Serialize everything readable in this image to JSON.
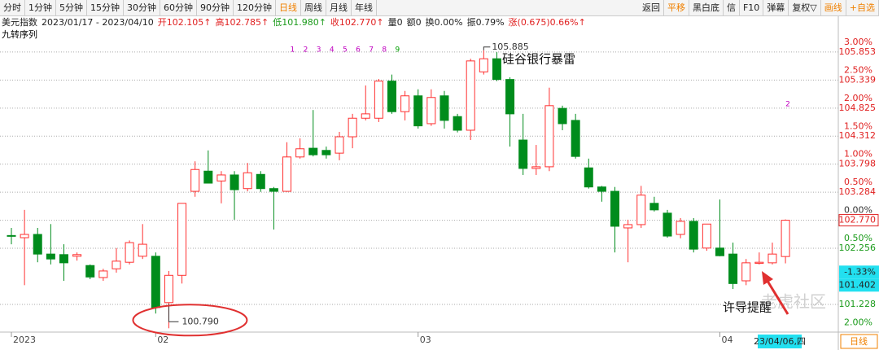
{
  "toolbar": {
    "left": [
      {
        "text": "分时",
        "color": "#222"
      },
      {
        "text": "1分钟",
        "color": "#222"
      },
      {
        "text": "5分钟",
        "color": "#222"
      },
      {
        "text": "15分钟",
        "color": "#222"
      },
      {
        "text": "30分钟",
        "color": "#222"
      },
      {
        "text": "60分钟",
        "color": "#222"
      },
      {
        "text": "90分钟",
        "color": "#222"
      },
      {
        "text": "120分钟",
        "color": "#222"
      },
      {
        "text": "日线",
        "color": "#f08000"
      },
      {
        "text": "周线",
        "color": "#222"
      },
      {
        "text": "月线",
        "color": "#222"
      },
      {
        "text": "年线",
        "color": "#222"
      }
    ],
    "right": [
      {
        "text": "返回",
        "color": "#222"
      },
      {
        "text": "平移",
        "color": "#f08000"
      },
      {
        "text": "黑白底",
        "color": "#222"
      },
      {
        "text": "信",
        "color": "#222"
      },
      {
        "text": "F10",
        "color": "#222"
      },
      {
        "text": "弹幕",
        "color": "#222"
      },
      {
        "text": "复权▽",
        "color": "#222"
      },
      {
        "text": "画线",
        "color": "#f08000"
      },
      {
        "text": "+自选",
        "color": "#f08000"
      }
    ]
  },
  "header": {
    "items": [
      {
        "text": "美元指数",
        "color": "#222"
      },
      {
        "text": "2023/01/17 - 2023/04/10",
        "color": "#222"
      },
      {
        "text": "开102.105↑",
        "color": "#e02020"
      },
      {
        "text": "高102.785↑",
        "color": "#e02020"
      },
      {
        "text": "低101.980↑",
        "color": "#1a9a1a"
      },
      {
        "text": "收102.770↑",
        "color": "#e02020"
      },
      {
        "text": "量0",
        "color": "#222"
      },
      {
        "text": "额0",
        "color": "#222"
      },
      {
        "text": "换0.00%",
        "color": "#222"
      },
      {
        "text": "振0.79%",
        "color": "#222"
      },
      {
        "text": "涨(0.675)0.66%↑",
        "color": "#e02020"
      }
    ]
  },
  "indicator": "九转序列",
  "chart_data": {
    "type": "candlestick",
    "categories": [
      "2023",
      null,
      null,
      null,
      null,
      null,
      null,
      null,
      null,
      null,
      null,
      "02",
      null,
      null,
      null,
      null,
      null,
      null,
      null,
      null,
      null,
      null,
      null,
      null,
      null,
      null,
      null,
      null,
      null,
      null,
      null,
      "03",
      null,
      null,
      null,
      null,
      null,
      null,
      null,
      null,
      null,
      null,
      null,
      null,
      null,
      null,
      null,
      null,
      null,
      null,
      null,
      null,
      null,
      null,
      "04",
      null,
      null,
      null,
      null,
      null
    ],
    "open": [
      102.49,
      102.45,
      102.51,
      102.15,
      102.14,
      102.11,
      101.94,
      101.72,
      101.88,
      102.0,
      102.11,
      102.11,
      101.26,
      101.76,
      103.3,
      103.67,
      103.49,
      103.6,
      103.35,
      103.61,
      103.35,
      103.3,
      103.93,
      104.09,
      104.05,
      104.0,
      104.3,
      104.64,
      104.64,
      105.32,
      104.76,
      105.05,
      104.54,
      105.05,
      104.67,
      104.42,
      105.49,
      105.73,
      105.35,
      104.24,
      103.72,
      103.75,
      104.82,
      104.6,
      103.73,
      103.38,
      103.3,
      102.63,
      102.69,
      103.08,
      102.9,
      102.51,
      102.75,
      102.26,
      102.26,
      102.15,
      101.66,
      101.98,
      101.99,
      102.105
    ],
    "high": [
      102.63,
      102.96,
      102.63,
      102.7,
      102.33,
      102.18,
      101.96,
      101.88,
      102.26,
      102.4,
      102.7,
      102.18,
      101.84,
      103.08,
      103.85,
      104.05,
      103.67,
      103.67,
      103.82,
      103.67,
      103.38,
      104.2,
      104.27,
      104.79,
      104.12,
      104.39,
      104.72,
      105.24,
      105.36,
      105.44,
      105.14,
      105.17,
      105.17,
      105.14,
      104.72,
      105.73,
      105.885,
      105.85,
      105.39,
      104.72,
      104.15,
      105.2,
      104.87,
      104.72,
      103.9,
      103.4,
      103.38,
      102.78,
      103.4,
      103.2,
      102.96,
      102.81,
      102.81,
      102.7,
      103.15,
      102.36,
      102.06,
      102.18,
      102.36,
      102.785
    ],
    "low": [
      102.33,
      101.58,
      102.0,
      101.96,
      101.66,
      102.03,
      101.69,
      101.66,
      101.81,
      101.96,
      102.06,
      101.06,
      100.79,
      101.61,
      103.2,
      103.45,
      103.08,
      102.78,
      103.3,
      103.29,
      102.6,
      103.29,
      103.9,
      103.94,
      103.9,
      103.87,
      104.09,
      104.6,
      104.57,
      104.72,
      104.6,
      104.45,
      104.5,
      104.45,
      104.38,
      104.24,
      105.44,
      105.32,
      104.12,
      103.6,
      103.6,
      103.67,
      104.42,
      103.9,
      103.35,
      103.11,
      102.18,
      102.0,
      102.63,
      102.93,
      102.45,
      102.44,
      102.18,
      102.21,
      102.11,
      101.51,
      101.58,
      101.96,
      101.96,
      101.98
    ],
    "close": [
      102.48,
      102.51,
      102.15,
      102.06,
      101.99,
      102.14,
      101.73,
      101.84,
      102.02,
      102.36,
      102.33,
      101.17,
      101.76,
      103.08,
      103.7,
      103.45,
      103.6,
      103.33,
      103.64,
      103.35,
      103.3,
      103.93,
      104.08,
      103.97,
      103.97,
      104.3,
      104.64,
      104.72,
      105.32,
      104.76,
      105.05,
      104.5,
      105.02,
      104.6,
      104.42,
      105.69,
      105.73,
      105.35,
      104.72,
      103.72,
      103.75,
      104.87,
      104.54,
      103.94,
      103.38,
      103.3,
      102.66,
      102.69,
      103.23,
      102.96,
      102.48,
      102.75,
      102.24,
      102.7,
      102.12,
      101.61,
      101.99,
      102.0,
      102.15,
      102.77
    ],
    "up_color": "#ff3030",
    "down_color": "#008c1c",
    "ylim": [
      100.72,
      106.21
    ],
    "yticks": [
      105.853,
      105.339,
      104.825,
      104.312,
      103.798,
      103.284,
      {
        "value": 102.77,
        "label": "102.770"
      },
      102.256,
      101.228
    ],
    "pct_ticks": [
      {
        "value": 3,
        "label": "3.00%"
      },
      {
        "value": 2.5,
        "label": "2.50%"
      },
      {
        "value": 2,
        "label": "2.00%"
      },
      {
        "value": 1.5,
        "label": "1.50%"
      },
      {
        "value": 1,
        "label": "1.00%"
      },
      {
        "value": 0.5,
        "label": "0.50%"
      },
      {
        "value": 0,
        "label": "0.00%"
      },
      {
        "value": -0.5,
        "label": "0.50%"
      },
      {
        "value": -2,
        "label": "2.00%"
      }
    ],
    "grid": true,
    "max_label": {
      "value": 105.885,
      "label": "105.885"
    },
    "min_label": {
      "value": 100.79,
      "label": "100.790"
    },
    "last_label": {
      "value": 102.77,
      "label": "102.770"
    },
    "annotations": [
      "硅谷银行暴雷",
      "许导提醒"
    ],
    "sequence": [
      {
        "text": "1",
        "color": "#c000c0"
      },
      {
        "text": "2",
        "color": "#c000c0"
      },
      {
        "text": "3",
        "color": "#c000c0"
      },
      {
        "text": "4",
        "color": "#c000c0"
      },
      {
        "text": "5",
        "color": "#c000c0"
      },
      {
        "text": "6",
        "color": "#c000c0"
      },
      {
        "text": "7",
        "color": "#c000c0"
      },
      {
        "text": "8",
        "color": "#c000c0"
      },
      {
        "text": "9",
        "color": "#00a000"
      }
    ],
    "sequence_tail": {
      "text": "2",
      "color": "#c000c0"
    },
    "cursor": {
      "pct": {
        "value": -1.33,
        "label": "-1.33%"
      },
      "price": {
        "value": 101.402,
        "label": "101.402"
      },
      "date": "23/04/06,四"
    },
    "period": "日线",
    "watermark": "老虎社区"
  }
}
